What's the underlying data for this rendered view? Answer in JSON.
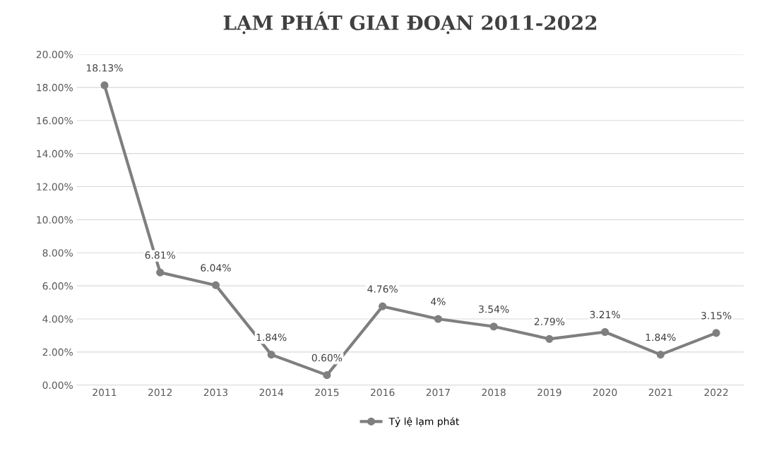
{
  "chart_data": {
    "type": "line",
    "title": "LẠM PHÁT GIAI ĐOẠN 2011-2022",
    "categories": [
      "2011",
      "2012",
      "2013",
      "2014",
      "2015",
      "2016",
      "2017",
      "2018",
      "2019",
      "2020",
      "2021",
      "2022"
    ],
    "series": [
      {
        "name": "Tỷ lệ lạm phát",
        "color": "#7f7f7f",
        "values": [
          18.13,
          6.81,
          6.04,
          1.84,
          0.6,
          4.76,
          4,
          3.54,
          2.79,
          3.21,
          1.84,
          3.15
        ],
        "value_labels": [
          "18.13%",
          "6.81%",
          "6.04%",
          "1.84%",
          "0.60%",
          "4.76%",
          "4%",
          "3.54%",
          "2.79%",
          "3.21%",
          "1.84%",
          "3.15%"
        ]
      }
    ],
    "ylim": [
      0,
      20
    ],
    "yticks": [
      {
        "value": 0,
        "label": "0.00%"
      },
      {
        "value": 2,
        "label": "2.00%"
      },
      {
        "value": 4,
        "label": "4.00%"
      },
      {
        "value": 6,
        "label": "6.00%"
      },
      {
        "value": 8,
        "label": "8.00%"
      },
      {
        "value": 10,
        "label": "10.00%"
      },
      {
        "value": 12,
        "label": "12.00%"
      },
      {
        "value": 14,
        "label": "14.00%"
      },
      {
        "value": 16,
        "label": "16.00%"
      },
      {
        "value": 18,
        "label": "18.00%"
      },
      {
        "value": 20,
        "label": "20.00%"
      }
    ],
    "grid": "y",
    "legend": "bottom",
    "marker": "circle",
    "line_style": "solid"
  }
}
